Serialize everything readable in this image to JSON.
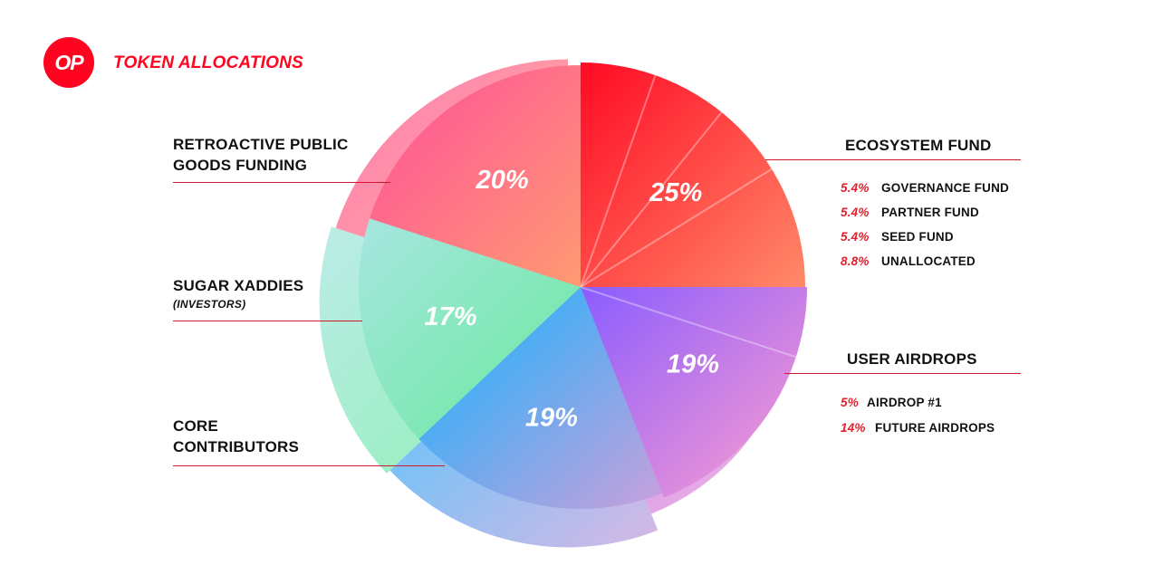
{
  "header": {
    "logo_text": "OP",
    "title": "TOKEN ALLOCATIONS"
  },
  "labels": {
    "ecosystem": "ECOSYSTEM FUND",
    "retro_line1": "RETROACTIVE PUBLIC",
    "retro_line2": "GOODS FUNDING",
    "sugar": "SUGAR XADDIES",
    "investors": "(INVESTORS)",
    "core_line1": "CORE",
    "core_line2": "CONTRIBUTORS",
    "user": "USER AIRDROPS"
  },
  "ecosystem_breakdown": [
    {
      "pct": "5.4%",
      "name": "GOVERNANCE FUND"
    },
    {
      "pct": "5.4%",
      "name": "PARTNER FUND"
    },
    {
      "pct": "5.4%",
      "name": "SEED FUND"
    },
    {
      "pct": "8.8%",
      "name": "UNALLOCATED"
    }
  ],
  "airdrop_breakdown": [
    {
      "pct": "5%",
      "name": "AIRDROP #1"
    },
    {
      "pct": "14%",
      "name": "FUTURE AIRDROPS"
    }
  ],
  "chart_data": {
    "type": "pie",
    "title": "TOKEN ALLOCATIONS",
    "slices": [
      {
        "label": "ECOSYSTEM FUND",
        "value": 25,
        "display": "25%",
        "colors": [
          "#ff0a24",
          "#ff8a6a"
        ],
        "sub": [
          5.4,
          5.4,
          5.4,
          8.8
        ]
      },
      {
        "label": "USER AIRDROPS",
        "value": 19,
        "display": "19%",
        "colors": [
          "#8a5cff",
          "#ff9fcf"
        ],
        "sub": [
          5,
          14
        ]
      },
      {
        "label": "CORE CONTRIBUTORS",
        "value": 19,
        "display": "19%",
        "colors": [
          "#10b4ff",
          "#c9a0dc"
        ]
      },
      {
        "label": "SUGAR XADDIES (INVESTORS)",
        "value": 17,
        "display": "17%",
        "colors": [
          "#a6e6e0",
          "#68ea9c"
        ]
      },
      {
        "label": "RETROACTIVE PUBLIC GOODS FUNDING",
        "value": 20,
        "display": "20%",
        "colors": [
          "#ff4f9b",
          "#ff9a72"
        ]
      }
    ]
  }
}
